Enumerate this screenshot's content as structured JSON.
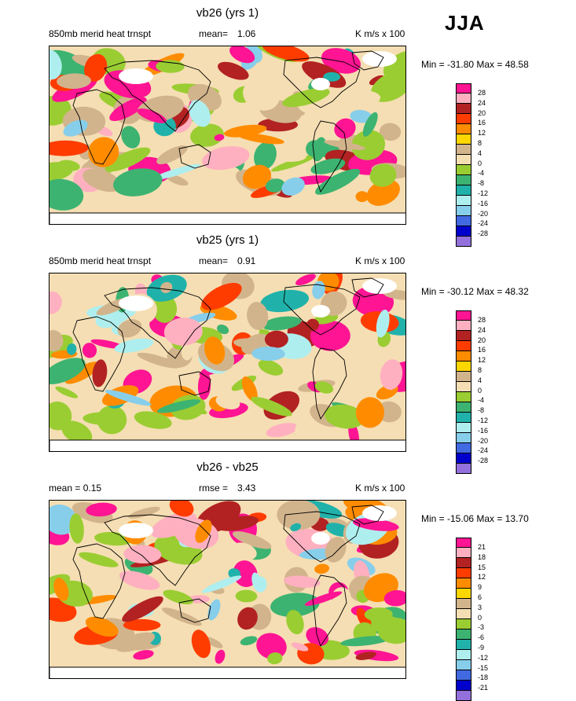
{
  "season": "JJA",
  "palettes": {
    "main": [
      "#ff1493",
      "#ffb0c0",
      "#b22222",
      "#ff3c00",
      "#ff8c00",
      "#ffd700",
      "#d2b48c",
      "#f5deb3",
      "#9acd32",
      "#3cb371",
      "#20b2aa",
      "#afeeee",
      "#87ceeb",
      "#4169e1",
      "#0000cd",
      "#9370db"
    ],
    "main_labels": [
      "28",
      "24",
      "20",
      "16",
      "12",
      "8",
      "4",
      "0",
      "-4",
      "-8",
      "-12",
      "-16",
      "-20",
      "-24",
      "-28"
    ],
    "diff_labels": [
      "21",
      "18",
      "15",
      "12",
      "9",
      "6",
      "3",
      "0",
      "-3",
      "-6",
      "-9",
      "-12",
      "-15",
      "-18",
      "-21"
    ]
  },
  "panels": [
    {
      "title": "vb26 (yrs 1)",
      "left_label": "850mb merid heat trnspt",
      "mean_label": "mean=",
      "mean_value": "1.06",
      "units": "K m/s x 100",
      "minmax": "Min = -31.80 Max =  48.58",
      "legend": "main_labels",
      "seed": 11
    },
    {
      "title": "vb25 (yrs 1)",
      "left_label": "850mb merid heat trnspt",
      "mean_label": "mean=",
      "mean_value": "0.91",
      "units": "K m/s x 100",
      "minmax": "Min = -30.12 Max =  48.32",
      "legend": "main_labels",
      "seed": 23
    },
    {
      "title": "vb26 - vb25",
      "left_label": "mean =   0.15",
      "mean_label": "rmse =",
      "mean_value": "3.43",
      "units": "K m/s x 100",
      "minmax": "Min = -15.06 Max =  13.70",
      "legend": "diff_labels",
      "seed": 37
    }
  ]
}
